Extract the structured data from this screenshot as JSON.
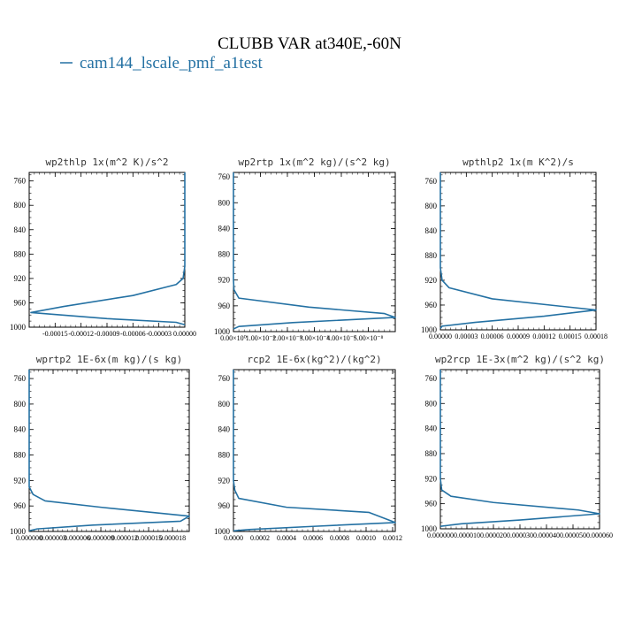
{
  "figure": {
    "title": "CLUBB VAR at340E,-60N",
    "legend": {
      "label": "cam144_lscale_pmf_a1test",
      "color": "#2471a3"
    }
  },
  "chart_data": [
    {
      "type": "line",
      "title": "wp2thlp   1x(m^2 K)/s^2",
      "yticks": [
        760,
        800,
        840,
        880,
        920,
        960,
        1000
      ],
      "ylim": [
        1000,
        746
      ],
      "xlim": [
        -0.00018,
        0.0
      ],
      "xticks": [
        -0.00015,
        -0.00012,
        -9e-05,
        -6e-05,
        -3e-05,
        0.0
      ],
      "xtick_labels": [
        "-0.00015",
        "-0.00012",
        "-0.00009",
        "-0.00006",
        "-0.00003",
        "0.00000"
      ],
      "series": [
        {
          "values": [
            [
              0,
              746
            ],
            [
              0,
              900
            ],
            [
              -2e-06,
              920
            ],
            [
              -1e-05,
              930
            ],
            [
              -6e-05,
              948
            ],
            [
              -0.00014,
              966
            ],
            [
              -0.000178,
              976
            ],
            [
              -9e-05,
              986
            ],
            [
              -1e-05,
              992
            ],
            [
              0,
              996
            ]
          ]
        }
      ]
    },
    {
      "type": "line",
      "title": "wp2rtp   1x(m^2 kg)/(s^2 kg)",
      "yticks": [
        760,
        800,
        840,
        880,
        920,
        960,
        1000
      ],
      "ylim": [
        1000,
        753
      ],
      "xlim": [
        0,
        6e-08
      ],
      "xticks": [
        0,
        1e-08,
        2e-08,
        3e-08,
        4e-08,
        5e-08
      ],
      "xtick_labels": [
        "0.00×10⁰",
        "1.00×10⁻⁸",
        "2.00×10⁻⁸",
        "3.00×10⁻⁸",
        "4.00×10⁻⁸",
        "5.00×10⁻⁸"
      ],
      "series": [
        {
          "values": [
            [
              0,
              753
            ],
            [
              0,
              920
            ],
            [
              2e-10,
              935
            ],
            [
              2e-09,
              948
            ],
            [
              2.8e-08,
              962
            ],
            [
              5.6e-08,
              972
            ],
            [
              6e-08,
              978
            ],
            [
              2.2e-08,
              986
            ],
            [
              2e-09,
              992
            ],
            [
              0,
              996
            ]
          ]
        }
      ]
    },
    {
      "type": "line",
      "title": "wpthlp2   1x(m K^2)/s",
      "yticks": [
        760,
        800,
        840,
        880,
        920,
        960,
        1000
      ],
      "ylim": [
        1000,
        746
      ],
      "xlim": [
        0,
        0.00018
      ],
      "xticks": [
        0,
        3e-05,
        6e-05,
        9e-05,
        0.00012,
        0.00015,
        0.00018
      ],
      "xtick_labels": [
        "0.00000",
        "0.00003",
        "0.00006",
        "0.00009",
        "0.00012",
        "0.00015",
        "0.00018"
      ],
      "series": [
        {
          "values": [
            [
              0,
              746
            ],
            [
              0,
              900
            ],
            [
              2e-06,
              920
            ],
            [
              1e-05,
              932
            ],
            [
              6e-05,
              950
            ],
            [
              0.00014,
              962
            ],
            [
              0.00018,
              968
            ],
            [
              0.00012,
              978
            ],
            [
              4e-05,
              988
            ],
            [
              2e-06,
              994
            ],
            [
              0,
              998
            ]
          ]
        }
      ]
    },
    {
      "type": "line",
      "title": "wprtp2   1E-6x(m kg)/(s kg)",
      "yticks": [
        760,
        800,
        840,
        880,
        920,
        960,
        1000
      ],
      "ylim": [
        1000,
        746
      ],
      "xlim": [
        0,
        2.01e-05
      ],
      "xticks": [
        0,
        3e-06,
        6e-06,
        9e-06,
        1.2e-05,
        1.5e-05,
        1.8e-05
      ],
      "xtick_labels": [
        "0.000000",
        "0.000003",
        "0.000006",
        "0.000009",
        "0.000012",
        "0.000015",
        "0.000018"
      ],
      "series": [
        {
          "values": [
            [
              0,
              746
            ],
            [
              0,
              930
            ],
            [
              5e-07,
              942
            ],
            [
              2e-06,
              952
            ],
            [
              9e-06,
              962
            ],
            [
              2.01e-05,
              976
            ],
            [
              1.9e-05,
              984
            ],
            [
              8e-06,
              990
            ],
            [
              1e-06,
              996
            ],
            [
              0,
              999
            ]
          ]
        }
      ]
    },
    {
      "type": "line",
      "title": "rcp2   1E-6x(kg^2)/(kg^2)",
      "yticks": [
        760,
        800,
        840,
        880,
        920,
        960,
        1000
      ],
      "ylim": [
        1000,
        746
      ],
      "xlim": [
        0,
        0.00122
      ],
      "xticks": [
        0,
        0.0002,
        0.0004,
        0.0006,
        0.0008,
        0.001,
        0.0012
      ],
      "xtick_labels": [
        "0.0000",
        "0.0002",
        "0.0004",
        "0.0006",
        "0.0008",
        "0.0010",
        "0.0012"
      ],
      "series": [
        {
          "values": [
            [
              0,
              746
            ],
            [
              0,
              920
            ],
            [
              1e-05,
              935
            ],
            [
              4e-05,
              948
            ],
            [
              0.0004,
              962
            ],
            [
              0.00102,
              970
            ],
            [
              0.00122,
              986
            ],
            [
              0.0006,
              992
            ],
            [
              0.00012,
              997
            ],
            [
              0,
              999
            ]
          ]
        }
      ]
    },
    {
      "type": "line",
      "title": "wp2rcp   1E-3x(m^2 kg)/(s^2 kg)",
      "yticks": [
        760,
        800,
        840,
        880,
        920,
        960,
        1000
      ],
      "ylim": [
        1000,
        746
      ],
      "xlim": [
        0,
        6e-05
      ],
      "xticks": [
        0,
        1e-05,
        2e-05,
        3e-05,
        4e-05,
        5e-05,
        6e-05
      ],
      "xtick_labels": [
        "0.000000",
        "0.000010",
        "0.000020",
        "0.000030",
        "0.000040",
        "0.000050",
        "0.000060"
      ],
      "series": [
        {
          "values": [
            [
              0,
              746
            ],
            [
              0,
              920
            ],
            [
              5e-07,
              938
            ],
            [
              4e-06,
              948
            ],
            [
              2e-05,
              958
            ],
            [
              5.2e-05,
              970
            ],
            [
              6e-05,
              976
            ],
            [
              3e-05,
              986
            ],
            [
              8e-06,
              992
            ],
            [
              0,
              996
            ]
          ]
        }
      ]
    }
  ]
}
